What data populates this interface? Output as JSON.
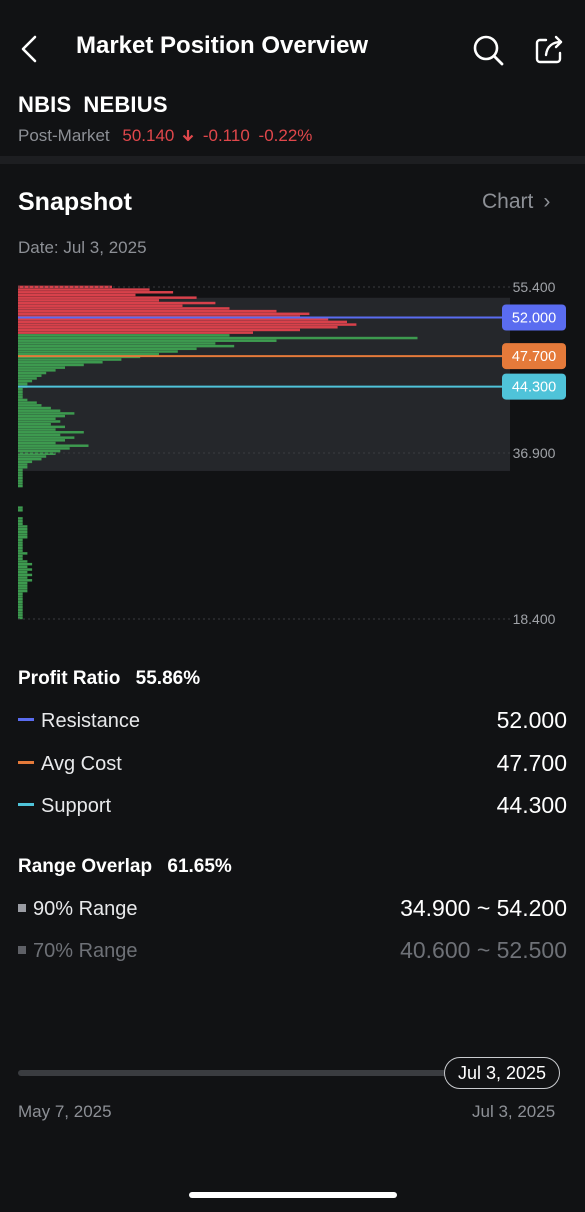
{
  "header": {
    "title": "Market Position Overview",
    "back_icon": "chevron-left-icon",
    "search_icon": "search-icon",
    "share_icon": "share-icon"
  },
  "stock": {
    "symbol": "NBIS",
    "name": "NEBIUS",
    "session_label": "Post-Market",
    "price": "50.140",
    "change": "-0.110",
    "change_pct": "-0.22%",
    "direction_icon": "arrow-down-icon"
  },
  "snapshot": {
    "title": "Snapshot",
    "chart_link": "Chart",
    "date_label": "Date: Jul 3, 2025"
  },
  "chart_data": {
    "type": "bar",
    "orientation": "horizontal",
    "y_ticks": [
      "55.400",
      "36.900",
      "18.400"
    ],
    "ylim": [
      18.4,
      55.4
    ],
    "price_markers": [
      {
        "name": "Resistance",
        "value": "52.000",
        "color": "#5a6cf0"
      },
      {
        "name": "Avg Cost",
        "value": "47.700",
        "color": "#e57a3a"
      },
      {
        "name": "Support",
        "value": "44.300",
        "color": "#4fc3d9"
      }
    ],
    "highlight_range": [
      34.9,
      54.2
    ],
    "profit_color": "#3d9a4f",
    "loss_color": "#d8414b",
    "split_price": 50.14,
    "distribution": [
      {
        "price": 55.4,
        "v": 0.2
      },
      {
        "price": 55.1,
        "v": 0.28
      },
      {
        "price": 54.8,
        "v": 0.33
      },
      {
        "price": 54.5,
        "v": 0.25
      },
      {
        "price": 54.2,
        "v": 0.38
      },
      {
        "price": 53.9,
        "v": 0.3
      },
      {
        "price": 53.6,
        "v": 0.42
      },
      {
        "price": 53.3,
        "v": 0.35
      },
      {
        "price": 53.0,
        "v": 0.45
      },
      {
        "price": 52.7,
        "v": 0.55
      },
      {
        "price": 52.4,
        "v": 0.62
      },
      {
        "price": 52.1,
        "v": 0.6
      },
      {
        "price": 51.8,
        "v": 0.66
      },
      {
        "price": 51.5,
        "v": 0.7
      },
      {
        "price": 51.2,
        "v": 0.72
      },
      {
        "price": 50.9,
        "v": 0.68
      },
      {
        "price": 50.6,
        "v": 0.6
      },
      {
        "price": 50.3,
        "v": 0.5
      },
      {
        "price": 50.0,
        "v": 0.45
      },
      {
        "price": 49.7,
        "v": 0.85
      },
      {
        "price": 49.4,
        "v": 0.55
      },
      {
        "price": 49.1,
        "v": 0.42
      },
      {
        "price": 48.8,
        "v": 0.46
      },
      {
        "price": 48.5,
        "v": 0.38
      },
      {
        "price": 48.2,
        "v": 0.34
      },
      {
        "price": 47.9,
        "v": 0.3
      },
      {
        "price": 47.6,
        "v": 0.26
      },
      {
        "price": 47.3,
        "v": 0.22
      },
      {
        "price": 47.0,
        "v": 0.18
      },
      {
        "price": 46.7,
        "v": 0.14
      },
      {
        "price": 46.4,
        "v": 0.1
      },
      {
        "price": 46.1,
        "v": 0.08
      },
      {
        "price": 45.8,
        "v": 0.06
      },
      {
        "price": 45.5,
        "v": 0.05
      },
      {
        "price": 45.2,
        "v": 0.04
      },
      {
        "price": 44.9,
        "v": 0.03
      },
      {
        "price": 44.6,
        "v": 0.02
      },
      {
        "price": 44.3,
        "v": 0.02
      },
      {
        "price": 44.0,
        "v": 0.01
      },
      {
        "price": 43.7,
        "v": 0.01
      },
      {
        "price": 43.4,
        "v": 0.01
      },
      {
        "price": 43.1,
        "v": 0.01
      },
      {
        "price": 42.8,
        "v": 0.02
      },
      {
        "price": 42.5,
        "v": 0.04
      },
      {
        "price": 42.2,
        "v": 0.05
      },
      {
        "price": 41.9,
        "v": 0.07
      },
      {
        "price": 41.6,
        "v": 0.09
      },
      {
        "price": 41.3,
        "v": 0.12
      },
      {
        "price": 41.0,
        "v": 0.1
      },
      {
        "price": 40.7,
        "v": 0.08
      },
      {
        "price": 40.4,
        "v": 0.09
      },
      {
        "price": 40.1,
        "v": 0.07
      },
      {
        "price": 39.8,
        "v": 0.1
      },
      {
        "price": 39.5,
        "v": 0.08
      },
      {
        "price": 39.2,
        "v": 0.14
      },
      {
        "price": 38.9,
        "v": 0.09
      },
      {
        "price": 38.6,
        "v": 0.12
      },
      {
        "price": 38.3,
        "v": 0.1
      },
      {
        "price": 38.0,
        "v": 0.08
      },
      {
        "price": 37.7,
        "v": 0.15
      },
      {
        "price": 37.4,
        "v": 0.11
      },
      {
        "price": 37.1,
        "v": 0.09
      },
      {
        "price": 36.8,
        "v": 0.08
      },
      {
        "price": 36.5,
        "v": 0.06
      },
      {
        "price": 36.2,
        "v": 0.05
      },
      {
        "price": 35.9,
        "v": 0.03
      },
      {
        "price": 35.6,
        "v": 0.02
      },
      {
        "price": 35.3,
        "v": 0.02
      },
      {
        "price": 35.0,
        "v": 0.01
      },
      {
        "price": 34.7,
        "v": 0.01
      },
      {
        "price": 34.4,
        "v": 0.01
      },
      {
        "price": 34.1,
        "v": 0.01
      },
      {
        "price": 33.8,
        "v": 0.01
      },
      {
        "price": 33.5,
        "v": 0.01
      },
      {
        "price": 33.2,
        "v": 0.01
      },
      {
        "price": 32.9,
        "v": 0.0
      },
      {
        "price": 32.6,
        "v": 0.0
      },
      {
        "price": 32.3,
        "v": 0.0
      },
      {
        "price": 32.0,
        "v": 0.0
      },
      {
        "price": 31.7,
        "v": 0.0
      },
      {
        "price": 31.4,
        "v": 0.0
      },
      {
        "price": 31.1,
        "v": 0.0
      },
      {
        "price": 30.8,
        "v": 0.01
      },
      {
        "price": 30.5,
        "v": 0.01
      },
      {
        "price": 30.2,
        "v": 0.0
      },
      {
        "price": 29.9,
        "v": 0.0
      },
      {
        "price": 29.6,
        "v": 0.01
      },
      {
        "price": 29.3,
        "v": 0.01
      },
      {
        "price": 29.0,
        "v": 0.01
      },
      {
        "price": 28.7,
        "v": 0.02
      },
      {
        "price": 28.4,
        "v": 0.02
      },
      {
        "price": 28.1,
        "v": 0.02
      },
      {
        "price": 27.8,
        "v": 0.02
      },
      {
        "price": 27.5,
        "v": 0.02
      },
      {
        "price": 27.2,
        "v": 0.01
      },
      {
        "price": 26.9,
        "v": 0.01
      },
      {
        "price": 26.6,
        "v": 0.01
      },
      {
        "price": 26.3,
        "v": 0.01
      },
      {
        "price": 26.0,
        "v": 0.01
      },
      {
        "price": 25.7,
        "v": 0.02
      },
      {
        "price": 25.4,
        "v": 0.01
      },
      {
        "price": 25.1,
        "v": 0.01
      },
      {
        "price": 24.8,
        "v": 0.02
      },
      {
        "price": 24.5,
        "v": 0.03
      },
      {
        "price": 24.2,
        "v": 0.02
      },
      {
        "price": 23.9,
        "v": 0.03
      },
      {
        "price": 23.6,
        "v": 0.02
      },
      {
        "price": 23.3,
        "v": 0.03
      },
      {
        "price": 23.0,
        "v": 0.02
      },
      {
        "price": 22.7,
        "v": 0.03
      },
      {
        "price": 22.4,
        "v": 0.02
      },
      {
        "price": 22.1,
        "v": 0.02
      },
      {
        "price": 21.8,
        "v": 0.02
      },
      {
        "price": 21.5,
        "v": 0.02
      },
      {
        "price": 21.2,
        "v": 0.01
      },
      {
        "price": 20.9,
        "v": 0.01
      },
      {
        "price": 20.6,
        "v": 0.01
      },
      {
        "price": 20.3,
        "v": 0.01
      },
      {
        "price": 20.0,
        "v": 0.01
      },
      {
        "price": 19.7,
        "v": 0.01
      },
      {
        "price": 19.4,
        "v": 0.01
      },
      {
        "price": 19.1,
        "v": 0.01
      },
      {
        "price": 18.8,
        "v": 0.01
      },
      {
        "price": 18.5,
        "v": 0.01
      }
    ]
  },
  "profit": {
    "label": "Profit Ratio",
    "value": "55.86%",
    "rows": [
      {
        "label": "Resistance",
        "value": "52.000",
        "color": "#5a6cf0"
      },
      {
        "label": "Avg Cost",
        "value": "47.700",
        "color": "#e57a3a"
      },
      {
        "label": "Support",
        "value": "44.300",
        "color": "#4fc3d9"
      }
    ]
  },
  "overlap": {
    "label": "Range Overlap",
    "value": "61.65%",
    "rows": [
      {
        "label": "90% Range",
        "value": "34.900 ~ 54.200"
      },
      {
        "label": "70% Range",
        "value": "40.600 ~ 52.500"
      }
    ]
  },
  "timeline": {
    "selected": "Jul 3, 2025",
    "start": "May 7, 2025",
    "end": "Jul 3, 2025"
  }
}
